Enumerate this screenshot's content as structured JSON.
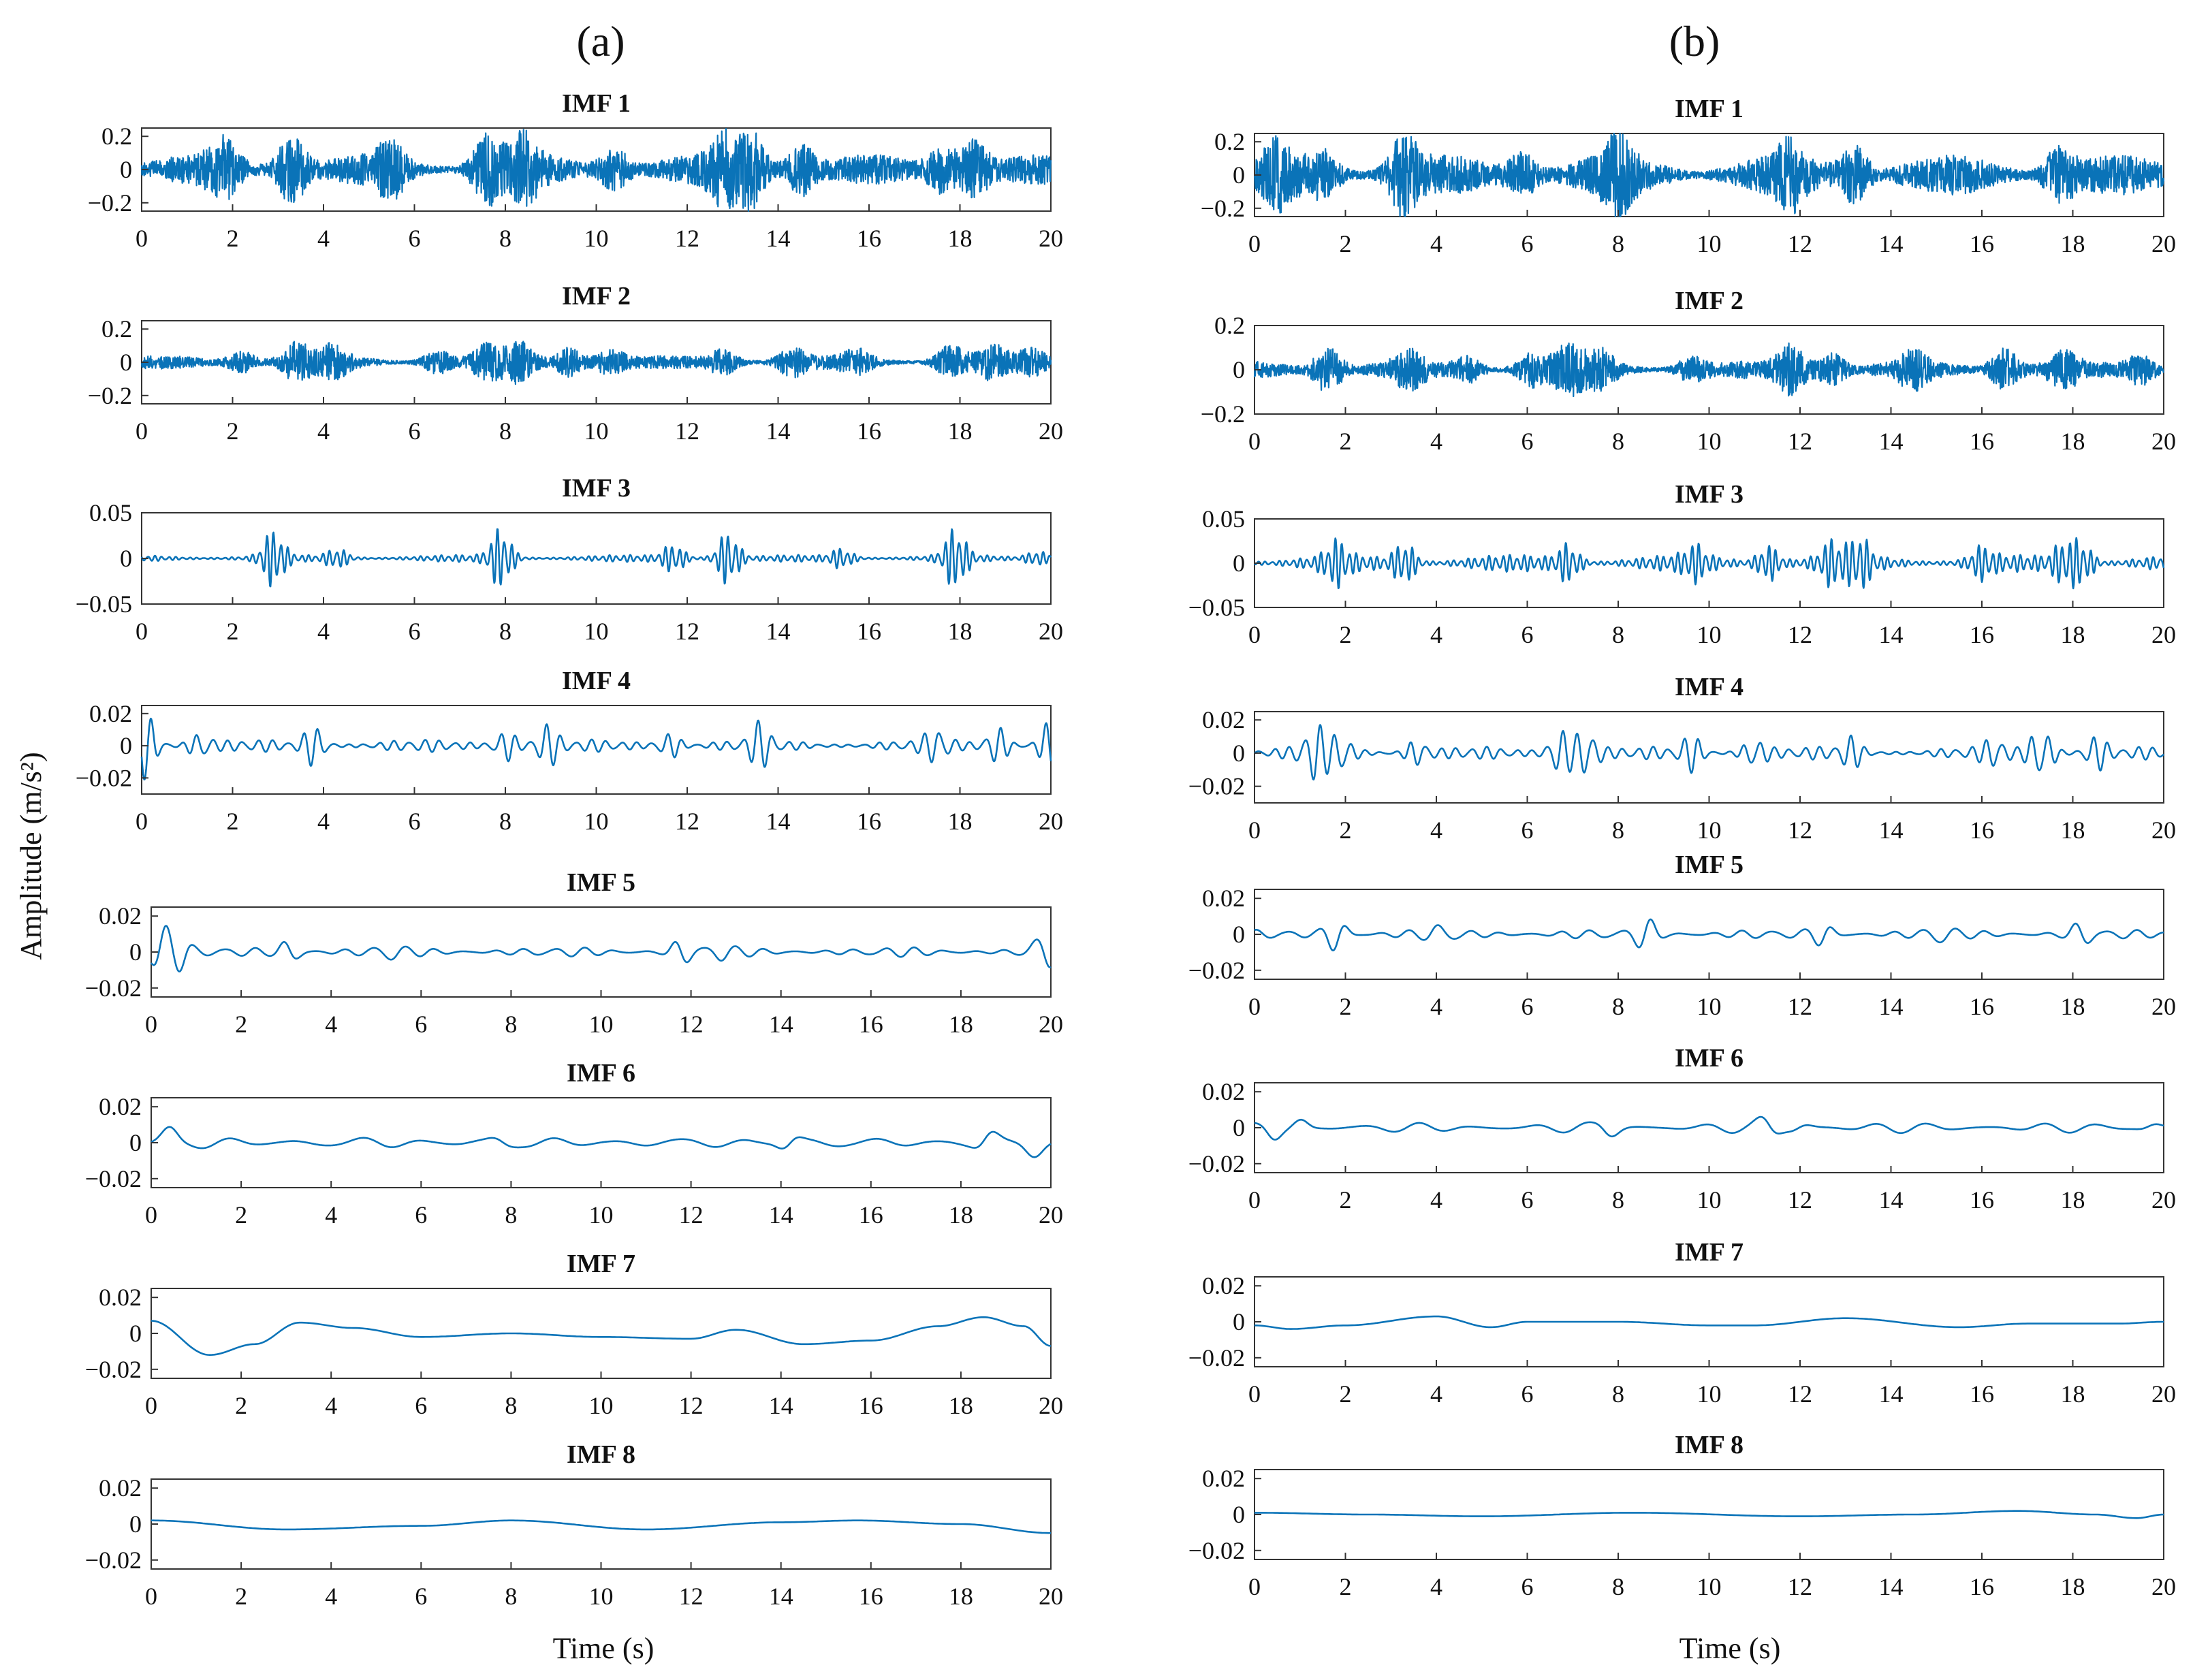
{
  "figure": {
    "ylabel": "Amplitude (m/s²)",
    "xlabel": "Time (s)",
    "line_color": "#0a73b8"
  },
  "chart_data": [
    {
      "panel": "(a)",
      "type": "line",
      "xlabel": "Time (s)",
      "ylabel": "Amplitude (m/s²)",
      "xlim": [
        0,
        20
      ],
      "xticks": [
        0,
        2,
        4,
        6,
        8,
        10,
        12,
        14,
        16,
        18,
        20
      ],
      "subplots": [
        {
          "title": "IMF 1",
          "ylim": [
            -0.25,
            0.25
          ],
          "yticks": [
            -0.2,
            0,
            0.2
          ],
          "yticklabels": [
            "−0.2",
            "0",
            "0.2"
          ],
          "signal": {
            "kind": "noise",
            "amp": 0.09,
            "seed": 11,
            "bursts": [
              [
                1.8,
                0.14
              ],
              [
                3.3,
                0.2
              ],
              [
                5.5,
                0.13
              ],
              [
                7.6,
                0.18
              ],
              [
                8.4,
                0.16
              ],
              [
                10.4,
                0.12
              ],
              [
                12.8,
                0.16
              ],
              [
                13.4,
                0.2
              ],
              [
                14.5,
                0.14
              ],
              [
                17.6,
                0.13
              ],
              [
                18.3,
                0.16
              ]
            ]
          }
        },
        {
          "title": "IMF 2",
          "ylim": [
            -0.25,
            0.25
          ],
          "yticks": [
            -0.2,
            0,
            0.2
          ],
          "yticklabels": [
            "−0.2",
            "0",
            "0.2"
          ],
          "signal": {
            "kind": "noise",
            "amp": 0.04,
            "seed": 12,
            "bursts": [
              [
                2.2,
                0.06
              ],
              [
                3.4,
                0.1
              ],
              [
                4.2,
                0.08
              ],
              [
                6.5,
                0.06
              ],
              [
                7.6,
                0.08
              ],
              [
                8.3,
                0.1
              ],
              [
                9.4,
                0.08
              ],
              [
                10.3,
                0.07
              ],
              [
                12.8,
                0.07
              ],
              [
                14.3,
                0.07
              ],
              [
                15.7,
                0.06
              ],
              [
                17.8,
                0.09
              ],
              [
                18.7,
                0.08
              ],
              [
                19.6,
                0.06
              ]
            ]
          }
        },
        {
          "title": "IMF 3",
          "ylim": [
            -0.05,
            0.05
          ],
          "yticks": [
            -0.05,
            0,
            0.05
          ],
          "yticklabels": [
            "−0.05",
            "0",
            "0.05"
          ],
          "signal": {
            "kind": "osc",
            "amp": 0.004,
            "seed": 13,
            "freq": 6.5,
            "bursts": [
              [
                2.9,
                0.03
              ],
              [
                4.3,
                0.01
              ],
              [
                7.9,
                0.033
              ],
              [
                11.7,
                0.015
              ],
              [
                12.9,
                0.03
              ],
              [
                15.4,
                0.01
              ],
              [
                17.9,
                0.032
              ],
              [
                19.7,
                0.008
              ]
            ]
          }
        },
        {
          "title": "IMF 4",
          "ylim": [
            -0.03,
            0.025
          ],
          "yticks": [
            -0.02,
            0,
            0.02
          ],
          "yticklabels": [
            "−0.02",
            "0",
            "0.02"
          ],
          "signal": {
            "kind": "osc",
            "amp": 0.004,
            "seed": 14,
            "freq": 3.0,
            "bursts": [
              [
                0.1,
                0.02
              ],
              [
                1.3,
                0.008
              ],
              [
                3.8,
                0.012
              ],
              [
                8.0,
                0.01
              ],
              [
                8.9,
                0.013
              ],
              [
                11.6,
                0.008
              ],
              [
                13.6,
                0.012
              ],
              [
                17.5,
                0.01
              ],
              [
                18.8,
                0.012
              ],
              [
                20.0,
                0.014
              ]
            ]
          }
        },
        {
          "title": "IMF 5",
          "ylim": [
            -0.025,
            0.025
          ],
          "yticks": [
            -0.02,
            0,
            0.02
          ],
          "yticklabels": [
            "−0.02",
            "0",
            "0.02"
          ],
          "signal": {
            "kind": "osc",
            "amp": 0.003,
            "seed": 15,
            "freq": 1.5,
            "bursts": [
              [
                0.2,
                0.016
              ],
              [
                0.6,
                0.008
              ],
              [
                3.1,
                0.008
              ],
              [
                5.3,
                0.005
              ],
              [
                11.8,
                0.006
              ],
              [
                12.6,
                0.005
              ],
              [
                19.8,
                0.014
              ]
            ]
          }
        },
        {
          "title": "IMF 6",
          "ylim": [
            -0.025,
            0.025
          ],
          "yticks": [
            -0.02,
            0,
            0.02
          ],
          "yticklabels": [
            "−0.02",
            "0",
            "0.02"
          ],
          "signal": {
            "kind": "osc",
            "amp": 0.004,
            "seed": 16,
            "freq": 0.7,
            "bursts": [
              [
                0.4,
                0.013
              ],
              [
                7.8,
                0.006
              ],
              [
                14.2,
                0.005
              ],
              [
                18.6,
                0.008
              ],
              [
                19.6,
                0.012
              ]
            ]
          }
        },
        {
          "title": "IMF 7",
          "ylim": [
            -0.025,
            0.025
          ],
          "yticks": [
            -0.02,
            0,
            0.02
          ],
          "yticklabels": [
            "−0.02",
            "0",
            "0.02"
          ],
          "signal": {
            "kind": "points",
            "x": [
              0,
              1.3,
              2.3,
              3.3,
              4.5,
              6,
              8,
              10,
              12,
              13,
              14.5,
              16,
              17.5,
              18.5,
              19.4,
              20
            ],
            "y": [
              0.007,
              -0.012,
              -0.006,
              0.006,
              0.003,
              -0.002,
              0.0,
              -0.002,
              -0.003,
              0.002,
              -0.006,
              -0.004,
              0.004,
              0.009,
              0.004,
              -0.007
            ]
          }
        },
        {
          "title": "IMF 8",
          "ylim": [
            -0.025,
            0.025
          ],
          "yticks": [
            -0.02,
            0,
            0.02
          ],
          "yticklabels": [
            "−0.02",
            "0",
            "0.02"
          ],
          "signal": {
            "kind": "points",
            "x": [
              0,
              3,
              6,
              8,
              11,
              14,
              15.7,
              18,
              20
            ],
            "y": [
              0.002,
              -0.003,
              -0.001,
              0.002,
              -0.003,
              0.001,
              0.002,
              0.0,
              -0.005
            ]
          }
        }
      ]
    },
    {
      "panel": "(b)",
      "type": "line",
      "xlabel": "Time (s)",
      "ylabel": "Amplitude (m/s²)",
      "xlim": [
        0,
        20
      ],
      "xticks": [
        0,
        2,
        4,
        6,
        8,
        10,
        12,
        14,
        16,
        18,
        20
      ],
      "subplots": [
        {
          "title": "IMF 1",
          "ylim": [
            -0.25,
            0.25
          ],
          "yticks": [
            -0.2,
            0,
            0.2
          ],
          "yticklabels": [
            "−0.2",
            "0",
            "0.2"
          ],
          "signal": {
            "kind": "noise",
            "amp": 0.12,
            "seed": 21,
            "bursts": [
              [
                0.5,
                0.12
              ],
              [
                1.5,
                0.1
              ],
              [
                3.3,
                0.2
              ],
              [
                5.9,
                0.12
              ],
              [
                8.0,
                0.16
              ],
              [
                11.8,
                0.13
              ],
              [
                13.2,
                0.16
              ],
              [
                17.7,
                0.15
              ]
            ]
          }
        },
        {
          "title": "IMF 2",
          "ylim": [
            -0.2,
            0.2
          ],
          "yticks": [
            -0.2,
            0,
            0.2
          ],
          "yticklabels": [
            "−0.2",
            "0",
            "0.2"
          ],
          "signal": {
            "kind": "noise",
            "amp": 0.04,
            "seed": 22,
            "bursts": [
              [
                1.6,
                0.1
              ],
              [
                3.4,
                0.06
              ],
              [
                4.7,
                0.05
              ],
              [
                6.1,
                0.06
              ],
              [
                6.9,
                0.09
              ],
              [
                7.6,
                0.07
              ],
              [
                9.6,
                0.05
              ],
              [
                11.8,
                0.1
              ],
              [
                12.7,
                0.07
              ],
              [
                14.5,
                0.06
              ],
              [
                16.5,
                0.09
              ],
              [
                17.8,
                0.06
              ],
              [
                19.5,
                0.06
              ]
            ]
          }
        },
        {
          "title": "IMF 3",
          "ylim": [
            -0.05,
            0.05
          ],
          "yticks": [
            -0.05,
            0,
            0.05
          ],
          "yticklabels": [
            "−0.05",
            "0",
            "0.05"
          ],
          "signal": {
            "kind": "osc",
            "amp": 0.01,
            "seed": 23,
            "freq": 6.5,
            "bursts": [
              [
                1.8,
                0.02
              ],
              [
                3.3,
                0.022
              ],
              [
                6.9,
                0.02
              ],
              [
                9.7,
                0.015
              ],
              [
                11.3,
                0.02
              ],
              [
                12.7,
                0.02
              ],
              [
                13.3,
                0.025
              ],
              [
                16.0,
                0.015
              ],
              [
                17.8,
                0.02
              ],
              [
                18.2,
                0.022
              ]
            ]
          }
        },
        {
          "title": "IMF 4",
          "ylim": [
            -0.03,
            0.025
          ],
          "yticks": [
            -0.02,
            0,
            0.02
          ],
          "yticklabels": [
            "−0.02",
            "0",
            "0.02"
          ],
          "signal": {
            "kind": "osc",
            "amp": 0.004,
            "seed": 24,
            "freq": 3.0,
            "bursts": [
              [
                1.3,
                0.017
              ],
              [
                1.9,
                0.012
              ],
              [
                3.6,
                0.008
              ],
              [
                6.7,
                0.015
              ],
              [
                7.3,
                0.017
              ],
              [
                9.6,
                0.01
              ],
              [
                11.0,
                0.01
              ],
              [
                13.1,
                0.009
              ],
              [
                16.3,
                0.008
              ],
              [
                17.3,
                0.019
              ],
              [
                18.5,
                0.01
              ]
            ]
          }
        },
        {
          "title": "IMF 5",
          "ylim": [
            -0.025,
            0.025
          ],
          "yticks": [
            -0.02,
            0,
            0.02
          ],
          "yticklabels": [
            "−0.02",
            "0",
            "0.02"
          ],
          "signal": {
            "kind": "osc",
            "amp": 0.003,
            "seed": 25,
            "freq": 1.5,
            "bursts": [
              [
                1.8,
                0.009
              ],
              [
                4.1,
                0.006
              ],
              [
                8.6,
                0.008
              ],
              [
                12.5,
                0.005
              ],
              [
                15.1,
                0.006
              ],
              [
                18.2,
                0.006
              ]
            ]
          }
        },
        {
          "title": "IMF 6",
          "ylim": [
            -0.025,
            0.025
          ],
          "yticks": [
            -0.02,
            0,
            0.02
          ],
          "yticklabels": [
            "−0.02",
            "0",
            "0.02"
          ],
          "signal": {
            "kind": "osc",
            "amp": 0.003,
            "seed": 26,
            "freq": 0.8,
            "bursts": [
              [
                0.4,
                0.005
              ],
              [
                1.0,
                0.004
              ],
              [
                7.8,
                0.004
              ],
              [
                11.3,
                0.006
              ],
              [
                12.0,
                0.004
              ],
              [
                19.7,
                0.003
              ]
            ]
          }
        },
        {
          "title": "IMF 7",
          "ylim": [
            -0.025,
            0.025
          ],
          "yticks": [
            -0.02,
            0,
            0.02
          ],
          "yticklabels": [
            "−0.02",
            "0",
            "0.02"
          ],
          "signal": {
            "kind": "points",
            "x": [
              0,
              0.8,
              2,
              4,
              5.2,
              6,
              8,
              10,
              11,
              13,
              15.5,
              17,
              19,
              20
            ],
            "y": [
              -0.002,
              -0.004,
              -0.002,
              0.003,
              -0.003,
              0.0,
              0.0,
              -0.002,
              -0.002,
              0.002,
              -0.003,
              -0.001,
              -0.001,
              0.0
            ]
          }
        },
        {
          "title": "IMF 8",
          "ylim": [
            -0.025,
            0.025
          ],
          "yticks": [
            -0.02,
            0,
            0.02
          ],
          "yticklabels": [
            "−0.02",
            "0",
            "0.02"
          ],
          "signal": {
            "kind": "points",
            "x": [
              0,
              2.5,
              5,
              8.3,
              12,
              14.5,
              16.8,
              18.5,
              19.4,
              20
            ],
            "y": [
              0.001,
              0.0,
              -0.001,
              0.001,
              -0.001,
              0.0,
              0.002,
              0.0,
              -0.002,
              0.0
            ]
          }
        }
      ]
    }
  ]
}
